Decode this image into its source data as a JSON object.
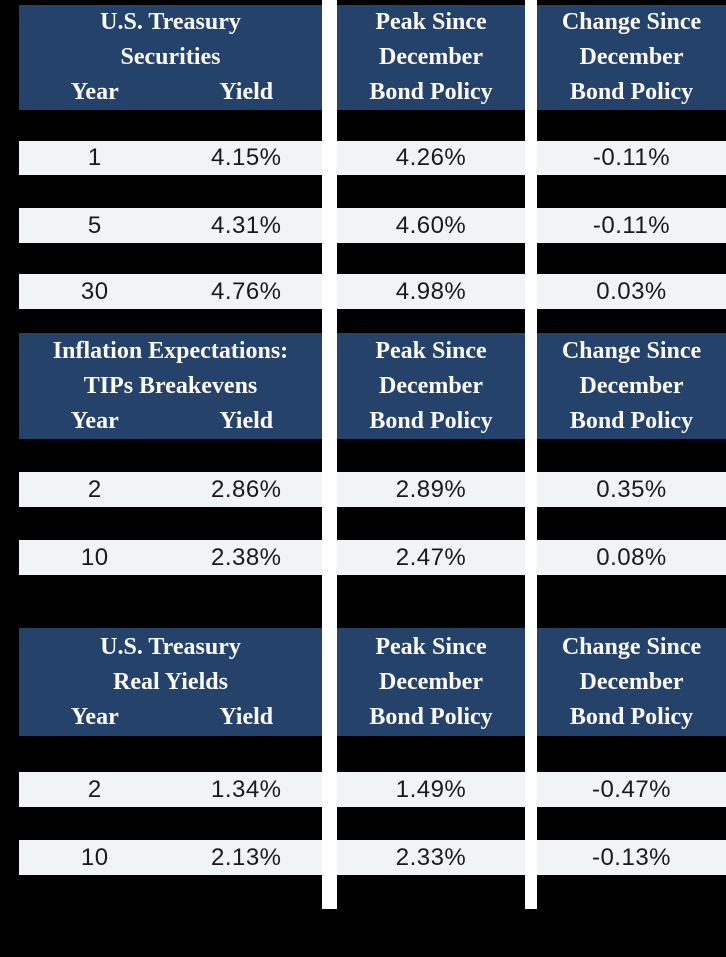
{
  "colors": {
    "page_bg": "#000000",
    "header_bg": "#24426a",
    "row_bg": "#f1f4f7",
    "gutter": "#ffffff",
    "header_text": "#fcfbfa",
    "value_text": "#1a1a1a"
  },
  "shared": {
    "year_label": "Year",
    "yield_label": "Yield",
    "peak_header_lines": [
      "Peak Since",
      "December",
      "Bond Policy"
    ],
    "change_header_lines": [
      "Change Since",
      "December",
      "Bond Policy"
    ]
  },
  "sections": [
    {
      "title_lines": [
        "U.S. Treasury",
        "Securities"
      ],
      "rows": [
        {
          "year": "1",
          "yield": "4.15%",
          "peak": "4.26%",
          "change": "-0.11%"
        },
        {
          "year": "5",
          "yield": "4.31%",
          "peak": "4.60%",
          "change": "-0.11%"
        },
        {
          "year": "30",
          "yield": "4.76%",
          "peak": "4.98%",
          "change": "0.03%"
        }
      ]
    },
    {
      "title_lines": [
        "Inflation Expectations:",
        "TIPs Breakevens"
      ],
      "rows": [
        {
          "year": "2",
          "yield": "2.86%",
          "peak": "2.89%",
          "change": "0.35%"
        },
        {
          "year": "10",
          "yield": "2.38%",
          "peak": "2.47%",
          "change": "0.08%"
        }
      ]
    },
    {
      "title_lines": [
        "U.S. Treasury",
        "Real Yields"
      ],
      "rows": [
        {
          "year": "2",
          "yield": "1.34%",
          "peak": "1.49%",
          "change": "-0.47%"
        },
        {
          "year": "10",
          "yield": "2.13%",
          "peak": "2.33%",
          "change": "-0.13%"
        }
      ]
    }
  ]
}
